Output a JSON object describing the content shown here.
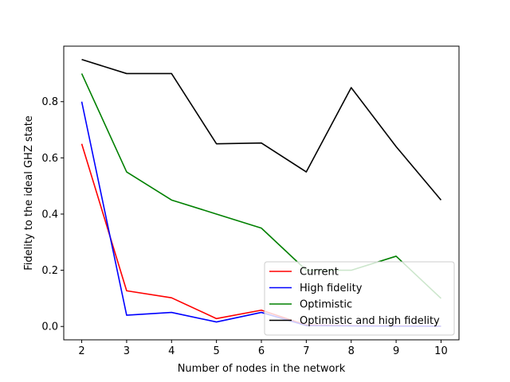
{
  "chart_data": {
    "type": "line",
    "title": "",
    "xlabel": "Number of nodes in the network",
    "ylabel": "Fidelity to the ideal GHZ state",
    "x": [
      2,
      3,
      4,
      5,
      6,
      7,
      8,
      9,
      10
    ],
    "xlim": [
      1.6,
      10.4
    ],
    "ylim": [
      -0.0475,
      0.9975
    ],
    "xticks": [
      2,
      3,
      4,
      5,
      6,
      7,
      8,
      9,
      10
    ],
    "yticks": [
      0.0,
      0.2,
      0.4,
      0.6,
      0.8
    ],
    "ytick_labels": [
      "0.0",
      "0.2",
      "0.4",
      "0.6",
      "0.8"
    ],
    "grid": false,
    "legend_position": "lower right",
    "series": [
      {
        "name": "Current",
        "color": "#ff0000",
        "values": [
          0.65,
          0.127,
          0.102,
          0.028,
          0.058,
          0.005,
          0.003,
          0.002,
          0.001
        ]
      },
      {
        "name": "High fidelity",
        "color": "#0000ff",
        "values": [
          0.8,
          0.04,
          0.05,
          0.016,
          0.05,
          0.003,
          0.002,
          0.001,
          0.001
        ]
      },
      {
        "name": "Optimistic",
        "color": "#008000",
        "values": [
          0.9,
          0.55,
          0.45,
          0.4,
          0.35,
          0.2,
          0.2,
          0.25,
          0.1
        ]
      },
      {
        "name": "Optimistic and high fidelity",
        "color": "#000000",
        "values": [
          0.95,
          0.9,
          0.9,
          0.65,
          0.653,
          0.55,
          0.85,
          0.64,
          0.45
        ]
      }
    ]
  }
}
